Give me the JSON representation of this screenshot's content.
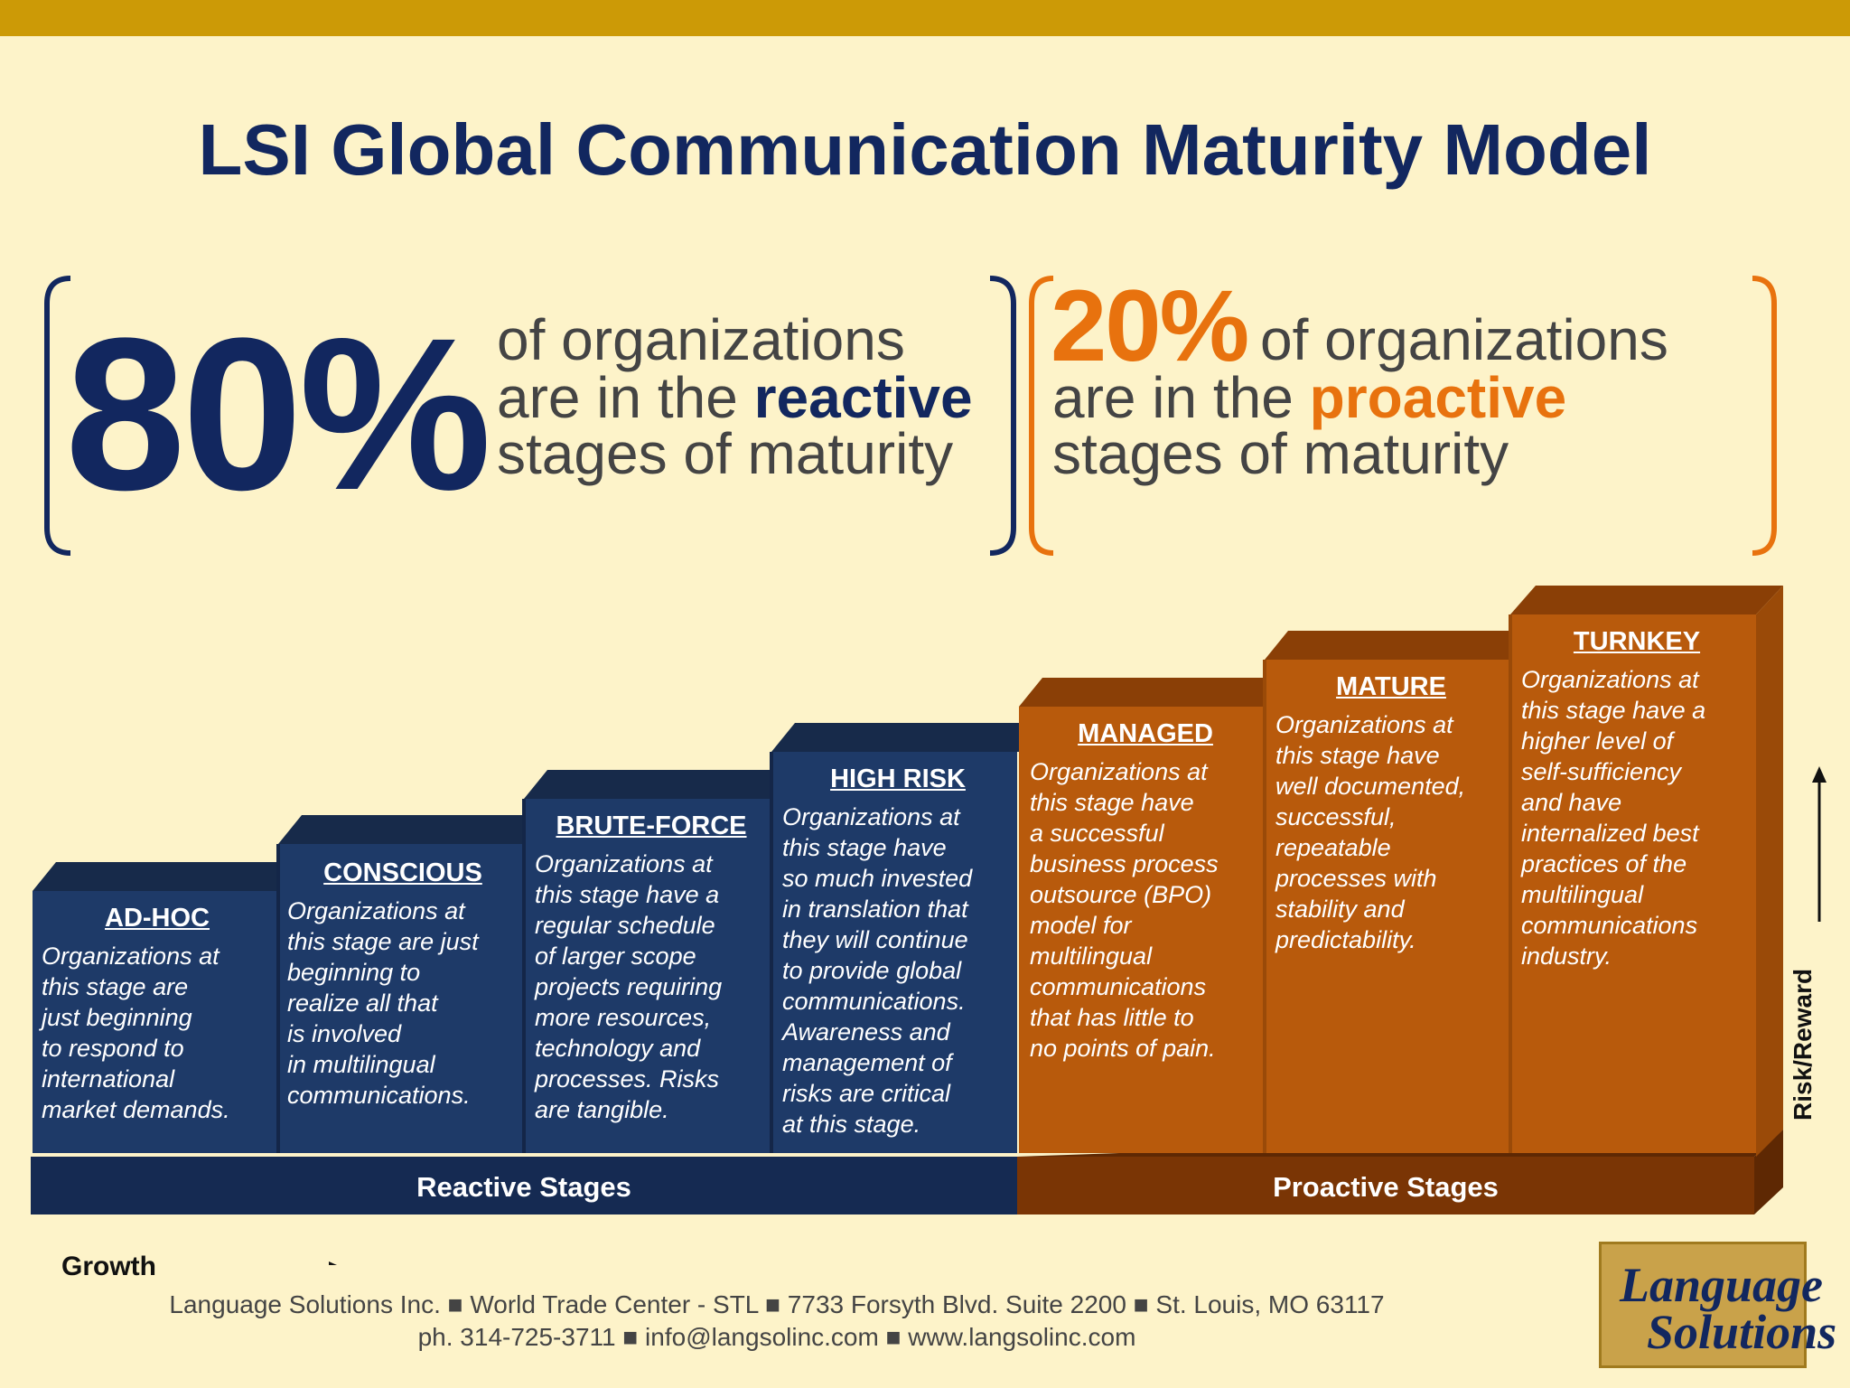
{
  "title": "LSI Global Communication Maturity Model",
  "left_stat": {
    "percent": "80%",
    "line1": "of organizations",
    "line2_pre": "are in the ",
    "line2_emph": "reactive",
    "line3": "stages of maturity"
  },
  "right_stat": {
    "percent": "20%",
    "line1": "of organizations",
    "line2_pre": "are in the ",
    "line2_emph": "proactive",
    "line3": "stages of maturity"
  },
  "stages": [
    {
      "title": "AD-HOC",
      "desc": [
        "Organizations at",
        "this stage are",
        "just beginning",
        "to respond to",
        "international",
        "market demands."
      ]
    },
    {
      "title": "CONSCIOUS",
      "desc": [
        "Organizations at",
        "this stage are just",
        "beginning to",
        "realize all that",
        "is involved",
        "in multilingual",
        "communications."
      ]
    },
    {
      "title": "BRUTE-FORCE",
      "desc": [
        "Organizations at",
        "this stage have a",
        "regular schedule",
        "of larger scope",
        "projects requiring",
        "more resources,",
        "technology and",
        "processes. Risks",
        "are tangible."
      ]
    },
    {
      "title": "HIGH RISK",
      "desc": [
        "Organizations at",
        "this stage have",
        "so much invested",
        "in translation that",
        "they will continue",
        "to provide global",
        "communications.",
        "Awareness and",
        "management of",
        "risks are critical",
        "at this stage."
      ]
    },
    {
      "title": "MANAGED",
      "desc": [
        "Organizations at",
        "this stage have",
        "a successful",
        "business process",
        "outsource (BPO)",
        "model for",
        "multilingual",
        "communications",
        "that has little to",
        "no points of pain."
      ]
    },
    {
      "title": "MATURE",
      "desc": [
        "Organizations at",
        "this stage have",
        "well documented,",
        "successful,",
        "repeatable",
        "processes with",
        "stability and",
        "predictability."
      ]
    },
    {
      "title": "TURNKEY",
      "desc": [
        "Organizations at",
        "this stage have a",
        "higher level of",
        "self-sufficiency",
        "and have",
        "internalized best",
        "practices of the",
        "multilingual",
        "communications",
        "industry."
      ]
    }
  ],
  "base": {
    "reactive": "Reactive Stages",
    "proactive": "Proactive Stages"
  },
  "axis": {
    "y_label": "Risk/Reward",
    "x_label": "Growth"
  },
  "footer": {
    "line1": "Language Solutions Inc. ■ World Trade Center - STL ■ 7733 Forsyth Blvd. Suite 2200 ■ St. Louis, MO 63117",
    "line2": "ph. 314-725-3711 ■ info@langsolinc.com ■ www.langsolinc.com"
  },
  "logo": {
    "line1": "Language",
    "line2": "Solutions"
  },
  "colors": {
    "navy": "#12275f",
    "orange": "#e8720e",
    "reactive_front": "#1e3a68",
    "reactive_top": "#172a4a",
    "proactive_front": "#b85a0c",
    "proactive_top": "#8a3f06",
    "background": "#fdf3c9",
    "top_bar": "#cc9a06"
  }
}
